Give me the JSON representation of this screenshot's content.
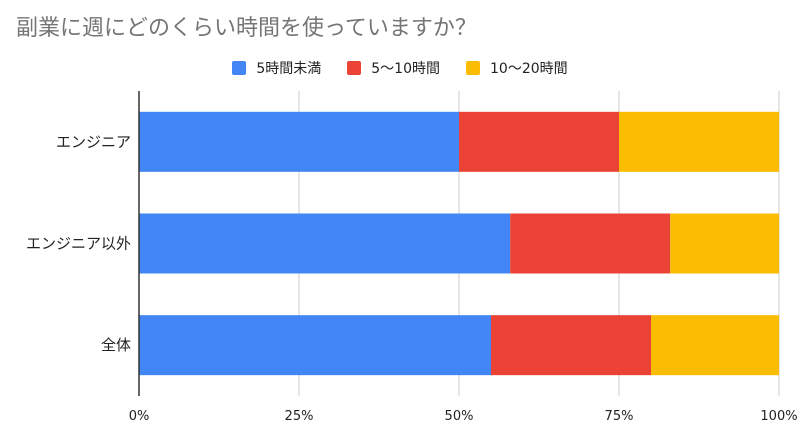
{
  "chart_data": {
    "type": "bar",
    "orientation": "horizontal",
    "stacked": "percent",
    "title": "副業に週にどのくらい時間を使っていますか？",
    "categories": [
      "エンジニア",
      "エンジニア以外",
      "全体"
    ],
    "series": [
      {
        "name": "5時間未満",
        "values": [
          50,
          58,
          55
        ],
        "color": "#4285f4"
      },
      {
        "name": "5〜10時間",
        "values": [
          25,
          25,
          25
        ],
        "color": "#ea4335"
      },
      {
        "name": "10〜20時間",
        "values": [
          25,
          17,
          20
        ],
        "color": "#fbbc04"
      }
    ],
    "xticks": [
      "0%",
      "25%",
      "50%",
      "75%",
      "100%"
    ],
    "xlim": [
      0,
      100
    ],
    "grid": true,
    "legend_position": "top"
  }
}
